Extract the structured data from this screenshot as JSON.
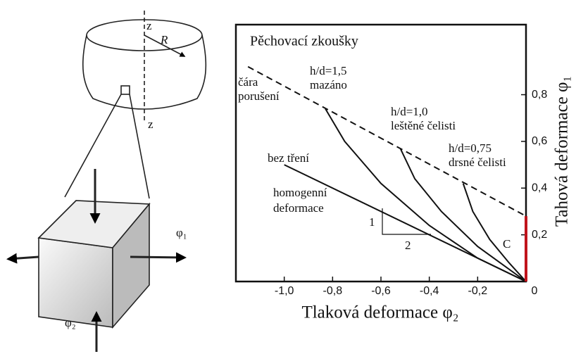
{
  "diagram": {
    "labels": [
      "z",
      "R",
      "z",
      "φ₁",
      "φ₂"
    ]
  },
  "chart_data": {
    "type": "line",
    "title": "Pěchovací zkoušky",
    "x_label": "Tlaková deformace φ₂",
    "y_label": "Tahová deformace φ₁",
    "xlim": [
      -1.2,
      0
    ],
    "ylim": [
      0,
      1.1
    ],
    "xticks": [
      {
        "value": -1.0,
        "label": "-1,0"
      },
      {
        "value": -0.8,
        "label": "-0,8"
      },
      {
        "value": -0.6,
        "label": "-0,6"
      },
      {
        "value": -0.4,
        "label": "-0,4"
      },
      {
        "value": -0.2,
        "label": "-0,2"
      },
      0
    ],
    "yticks": [
      {
        "value": 0.2,
        "label": "0,2"
      },
      {
        "value": 0.4,
        "label": "0,4"
      },
      {
        "value": 0.6,
        "label": "0,6"
      },
      {
        "value": 0.8,
        "label": "0,8"
      }
    ],
    "series": [
      {
        "name": [
          "čára",
          "porušení"
        ],
        "color": "#111111",
        "dash": true,
        "x": [
          -1.15,
          0
        ],
        "values": [
          0.92,
          0.28
        ]
      },
      {
        "name": [
          "bez tření"
        ],
        "color": "#111111",
        "x": [
          -1.0,
          0
        ],
        "values": [
          0.5,
          0
        ]
      },
      {
        "name": [
          "h/d=1,5",
          "mazáno"
        ],
        "color": "#111111",
        "x": [
          -0.83,
          -0.75,
          -0.6,
          -0.4,
          -0.2,
          0
        ],
        "values": [
          0.74,
          0.6,
          0.42,
          0.24,
          0.1,
          0
        ]
      },
      {
        "name": [
          "h/d=1,0",
          "leštěné čelisti"
        ],
        "color": "#111111",
        "x": [
          -0.52,
          -0.46,
          -0.35,
          -0.2,
          0
        ],
        "values": [
          0.57,
          0.44,
          0.3,
          0.15,
          0
        ]
      },
      {
        "name": [
          "h/d=0,75",
          "drsné čelisti"
        ],
        "color": "#111111",
        "x": [
          -0.26,
          -0.22,
          -0.15,
          -0.07,
          0
        ],
        "values": [
          0.42,
          0.3,
          0.18,
          0.08,
          0
        ]
      },
      {
        "name": [
          "C"
        ],
        "color": "#c0141c",
        "x": [
          0,
          0
        ],
        "values": [
          0,
          0.28
        ]
      }
    ],
    "annotations": [
      [
        "homogenní",
        "deformace"
      ],
      [
        "1"
      ],
      [
        "2"
      ]
    ]
  }
}
